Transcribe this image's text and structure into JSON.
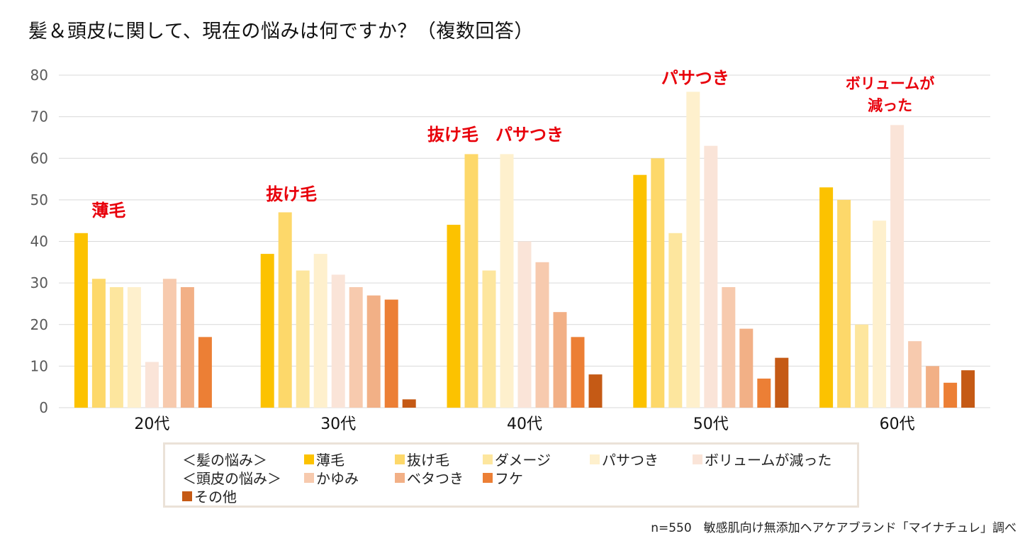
{
  "title": "髪＆頭皮に関して、現在の悩みは何ですか？（複数回答）",
  "footnote": "n=550　敏感肌向け無添加ヘアケアブランド「マイナチュレ」調べ",
  "legend": {
    "group_hair": "＜髪の悩み＞",
    "group_scalp": "＜頭皮の悩み＞"
  },
  "chart_data": {
    "type": "bar",
    "title": "髪＆頭皮に関して、現在の悩みは何ですか？（複数回答）",
    "xlabel": "",
    "ylabel": "",
    "ylim": [
      0,
      80
    ],
    "yticks": [
      0,
      10,
      20,
      30,
      40,
      50,
      60,
      70,
      80
    ],
    "grid": true,
    "legend_position": "bottom",
    "categories": [
      "20代",
      "30代",
      "40代",
      "50代",
      "60代"
    ],
    "series": [
      {
        "name": "薄毛",
        "group": "hair",
        "color": "#fcc200",
        "values": [
          42,
          37,
          44,
          56,
          53
        ]
      },
      {
        "name": "抜け毛",
        "group": "hair",
        "color": "#fdd86a",
        "values": [
          31,
          47,
          61,
          60,
          50
        ]
      },
      {
        "name": "ダメージ",
        "group": "hair",
        "color": "#fde69e",
        "values": [
          29,
          33,
          33,
          42,
          20
        ]
      },
      {
        "name": "パサつき",
        "group": "hair",
        "color": "#fef0cd",
        "values": [
          29,
          37,
          61,
          76,
          45
        ]
      },
      {
        "name": "ボリュームが減った",
        "group": "hair",
        "color": "#fae4d8",
        "values": [
          11,
          32,
          40,
          63,
          68
        ]
      },
      {
        "name": "かゆみ",
        "group": "scalp",
        "color": "#f7caae",
        "values": [
          31,
          29,
          35,
          29,
          16
        ]
      },
      {
        "name": "ベタつき",
        "group": "scalp",
        "color": "#f2b086",
        "values": [
          29,
          27,
          23,
          19,
          10
        ]
      },
      {
        "name": "フケ",
        "group": "scalp",
        "color": "#ec7f35",
        "values": [
          17,
          26,
          17,
          7,
          6
        ]
      },
      {
        "name": "その他",
        "group": "other",
        "color": "#c55a15",
        "values": [
          0,
          2,
          8,
          12,
          9
        ]
      }
    ],
    "annotations": [
      {
        "category": "20代",
        "text": "薄毛",
        "color": "#e8000b"
      },
      {
        "category": "30代",
        "text": "抜け毛",
        "color": "#e8000b"
      },
      {
        "category": "40代",
        "text": "抜け毛　パサつき",
        "color": "#e8000b"
      },
      {
        "category": "50代",
        "text": "パサつき",
        "color": "#e8000b"
      },
      {
        "category": "60代",
        "text": "ボリュームが\n減った",
        "color": "#e8000b"
      }
    ]
  }
}
